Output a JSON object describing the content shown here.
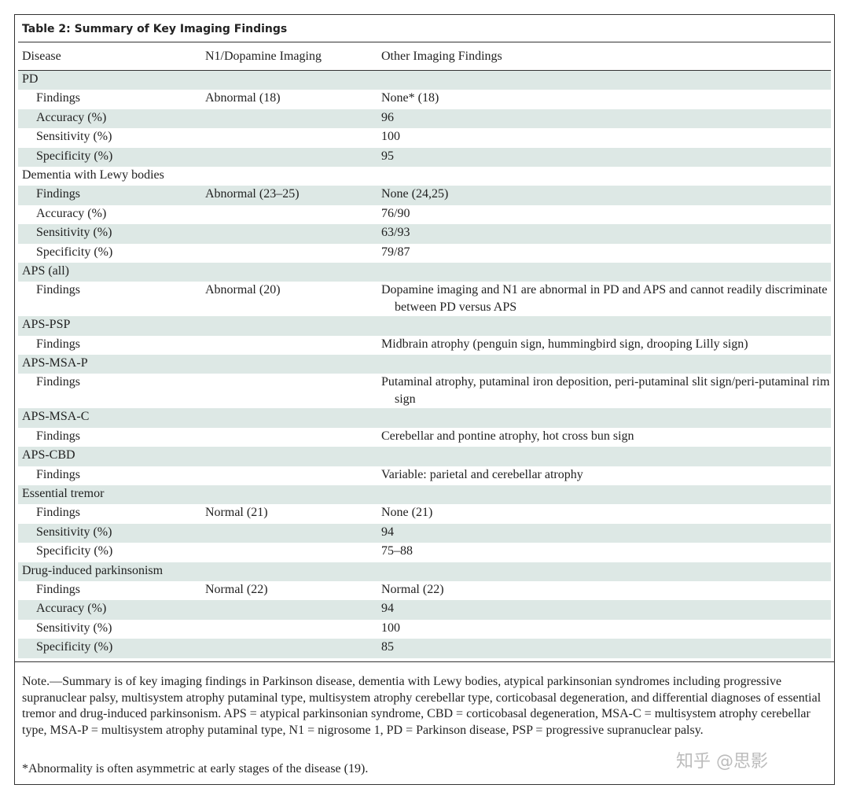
{
  "title": "Table 2: Summary of Key Imaging Findings",
  "table": {
    "header": [
      "Disease",
      "N1/Dopamine Imaging",
      "Other Imaging Findings"
    ],
    "groups": [
      {
        "disease": "PD",
        "rows": [
          {
            "label": "Findings",
            "n1": "Abnormal (18)",
            "other": "None* (18)"
          },
          {
            "label": "Accuracy (%)",
            "other": "96"
          },
          {
            "label": "Sensitivity (%)",
            "other": "100"
          },
          {
            "label": "Specificity (%)",
            "other": "95"
          }
        ]
      },
      {
        "disease": "Dementia with Lewy bodies",
        "rows": [
          {
            "label": "Findings",
            "n1": "Abnormal (23–25)",
            "other": "None (24,25)"
          },
          {
            "label": "Accuracy (%)",
            "other": "76/90"
          },
          {
            "label": "Sensitivity (%)",
            "other": "63/93"
          },
          {
            "label": "Specificity (%)",
            "other": "79/87"
          }
        ]
      },
      {
        "disease": "APS (all)",
        "rows": [
          {
            "label": "Findings",
            "n1": "Abnormal (20)",
            "other": "Dopamine imaging and N1 are abnormal in PD and APS and cannot readily discriminate between PD versus APS"
          }
        ]
      },
      {
        "disease": "APS-PSP",
        "rows": [
          {
            "label": "Findings",
            "other": "Midbrain atrophy (penguin sign, hummingbird sign, drooping Lilly sign)"
          }
        ]
      },
      {
        "disease": "APS-MSA-P",
        "rows": [
          {
            "label": "Findings",
            "other": "Putaminal atrophy, putaminal iron deposition, peri-putaminal slit sign/peri-putaminal rim sign"
          }
        ]
      },
      {
        "disease": "APS-MSA-C",
        "rows": [
          {
            "label": "Findings",
            "other": "Cerebellar and pontine atrophy, hot cross bun sign"
          }
        ]
      },
      {
        "disease": "APS-CBD",
        "rows": [
          {
            "label": "Findings",
            "other": "Variable: parietal and cerebellar atrophy"
          }
        ]
      },
      {
        "disease": "Essential tremor",
        "rows": [
          {
            "label": "Findings",
            "n1": "Normal (21)",
            "other": "None (21)"
          },
          {
            "label": "Sensitivity (%)",
            "other": "94"
          },
          {
            "label": "Specificity (%)",
            "other": "75–88"
          }
        ]
      },
      {
        "disease": "Drug-induced parkinsonism",
        "rows": [
          {
            "label": "Findings",
            "n1": "Normal (22)",
            "other": "Normal (22)"
          },
          {
            "label": "Accuracy (%)",
            "other": "94"
          },
          {
            "label": "Sensitivity (%)",
            "other": "100"
          },
          {
            "label": "Specificity (%)",
            "other": "85"
          }
        ]
      }
    ]
  },
  "note": "Note.—Summary is of key imaging findings in Parkinson disease, dementia with Lewy bodies, atypical parkinsonian syndromes including progressive supranuclear palsy, multisystem atrophy putaminal type, multisystem atrophy cerebellar type, corticobasal degeneration, and differential diagnoses of essential tremor and drug-induced parkinsonism. APS = atypical parkinsonian syndrome, CBD = corticobasal degeneration, MSA-C = multisystem atrophy cerebellar type, MSA-P = multisystem atrophy putaminal type, N1 = nigrosome 1, PD = Parkinson disease, PSP = progressive supranuclear palsy.",
  "footnote": "*Abnormality is often asymmetric at early stages of the disease (19).",
  "watermark": "知乎 @思影"
}
